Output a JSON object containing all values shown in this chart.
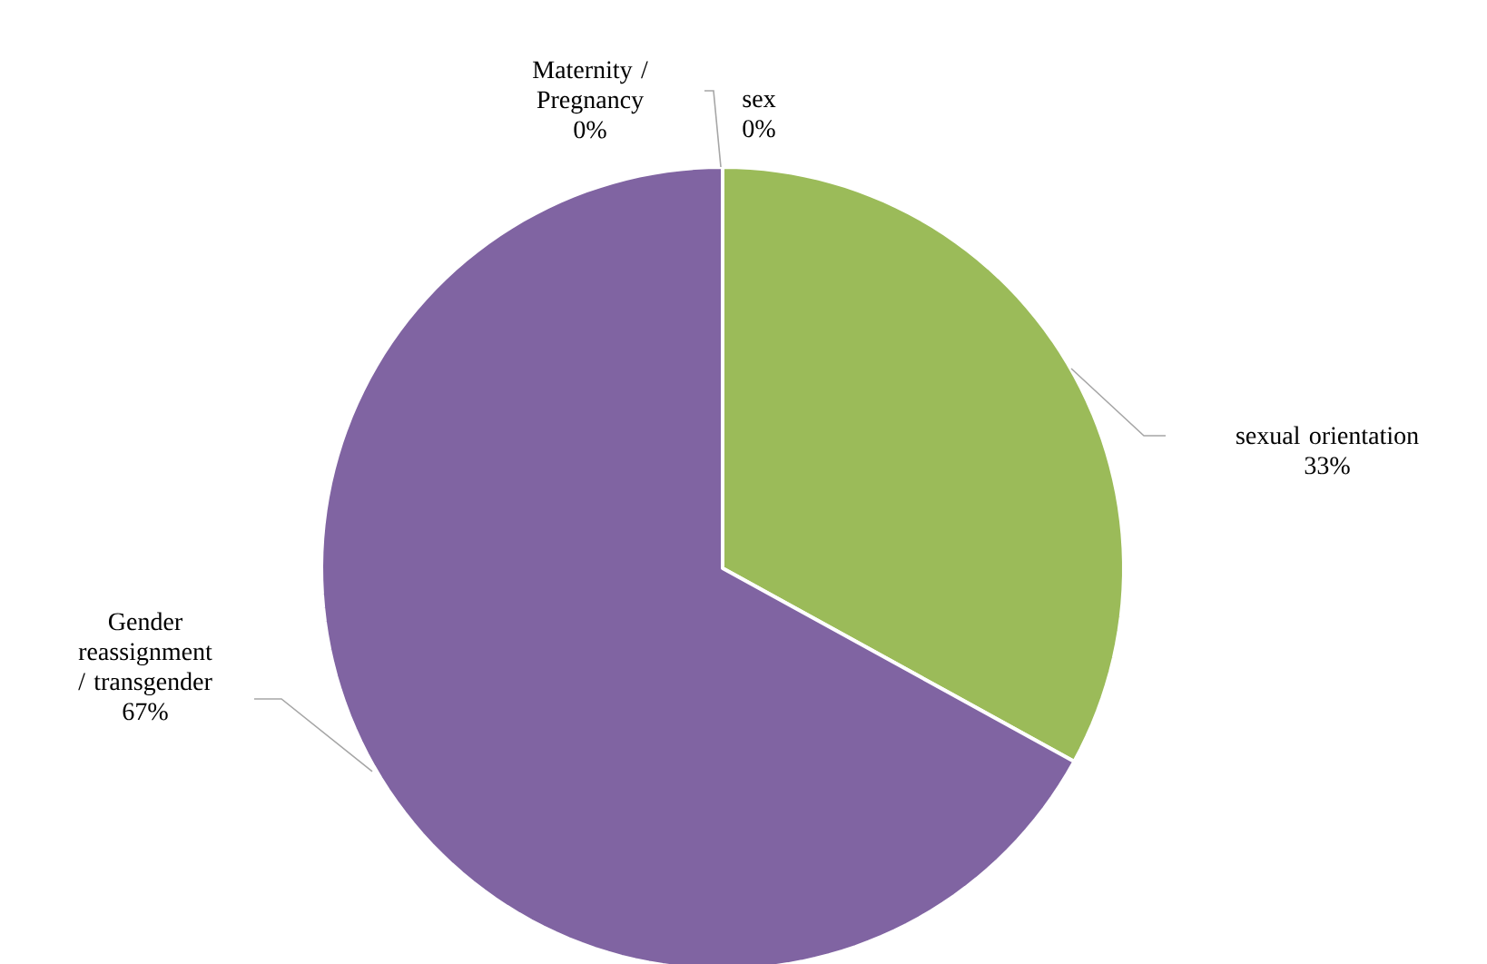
{
  "chart_data": {
    "type": "pie",
    "categories": [
      "Maternity / Pregnancy",
      "sex",
      "sexual orientation",
      "Gender reassignment / transgender"
    ],
    "values": [
      0,
      0,
      33,
      67
    ],
    "value_labels": [
      "0%",
      "0%",
      "33%",
      "67%"
    ],
    "colors": [
      "#4f81bd",
      "#c0504d",
      "#9bbb59",
      "#8064a2"
    ]
  }
}
